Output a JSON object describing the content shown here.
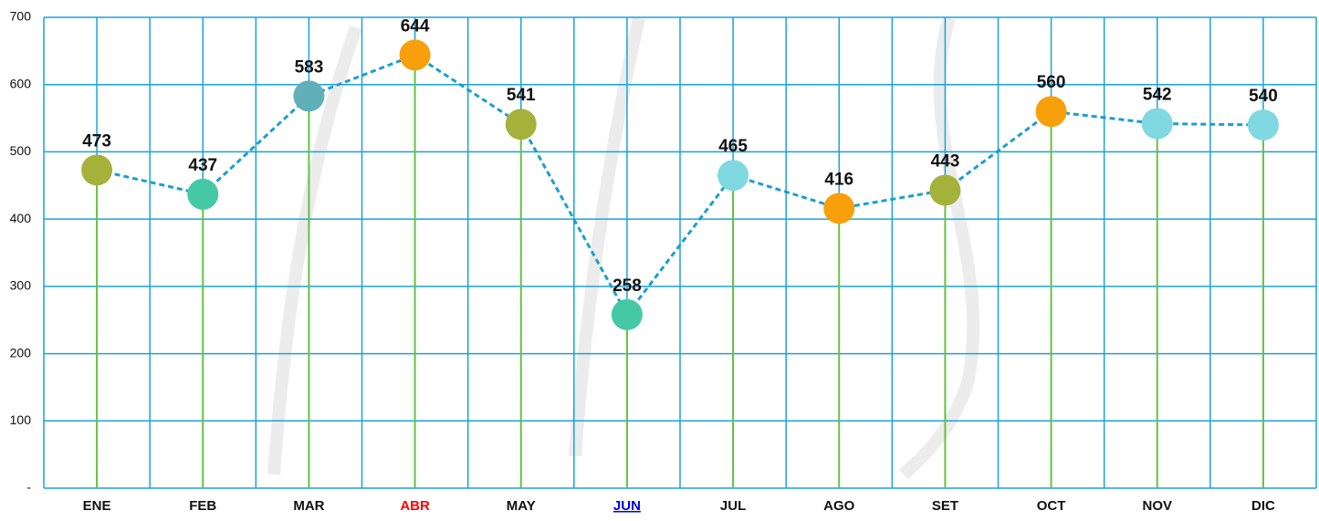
{
  "chart_data": {
    "type": "line",
    "categories": [
      "ENE",
      "FEB",
      "MAR",
      "ABR",
      "MAY",
      "JUN",
      "JUL",
      "AGO",
      "SET",
      "OCT",
      "NOV",
      "DIC"
    ],
    "category_colors": [
      "#111111",
      "#111111",
      "#111111",
      "#ff0000",
      "#111111",
      "#0000ee",
      "#111111",
      "#111111",
      "#111111",
      "#111111",
      "#111111",
      "#111111"
    ],
    "category_underline": [
      false,
      false,
      false,
      false,
      false,
      true,
      false,
      false,
      false,
      false,
      false,
      false
    ],
    "values": [
      473,
      437,
      583,
      644,
      541,
      258,
      465,
      416,
      443,
      560,
      542,
      540
    ],
    "point_colors": [
      "#a4b23c",
      "#45c9a5",
      "#5fb0b8",
      "#f7a00c",
      "#a4b23c",
      "#45c9a5",
      "#80d8e0",
      "#f7a00c",
      "#a4b23c",
      "#f7a00c",
      "#80d8e0",
      "#80d8e0"
    ],
    "line_color": "#1a9fcf",
    "drop_line_color": "#66c244",
    "grid_color": "#1aa3d9",
    "ylim": [
      0,
      700
    ],
    "yticks": [
      {
        "value": 0,
        "label": "-"
      },
      100,
      200,
      300,
      400,
      500,
      600,
      700
    ],
    "grid": true
  }
}
